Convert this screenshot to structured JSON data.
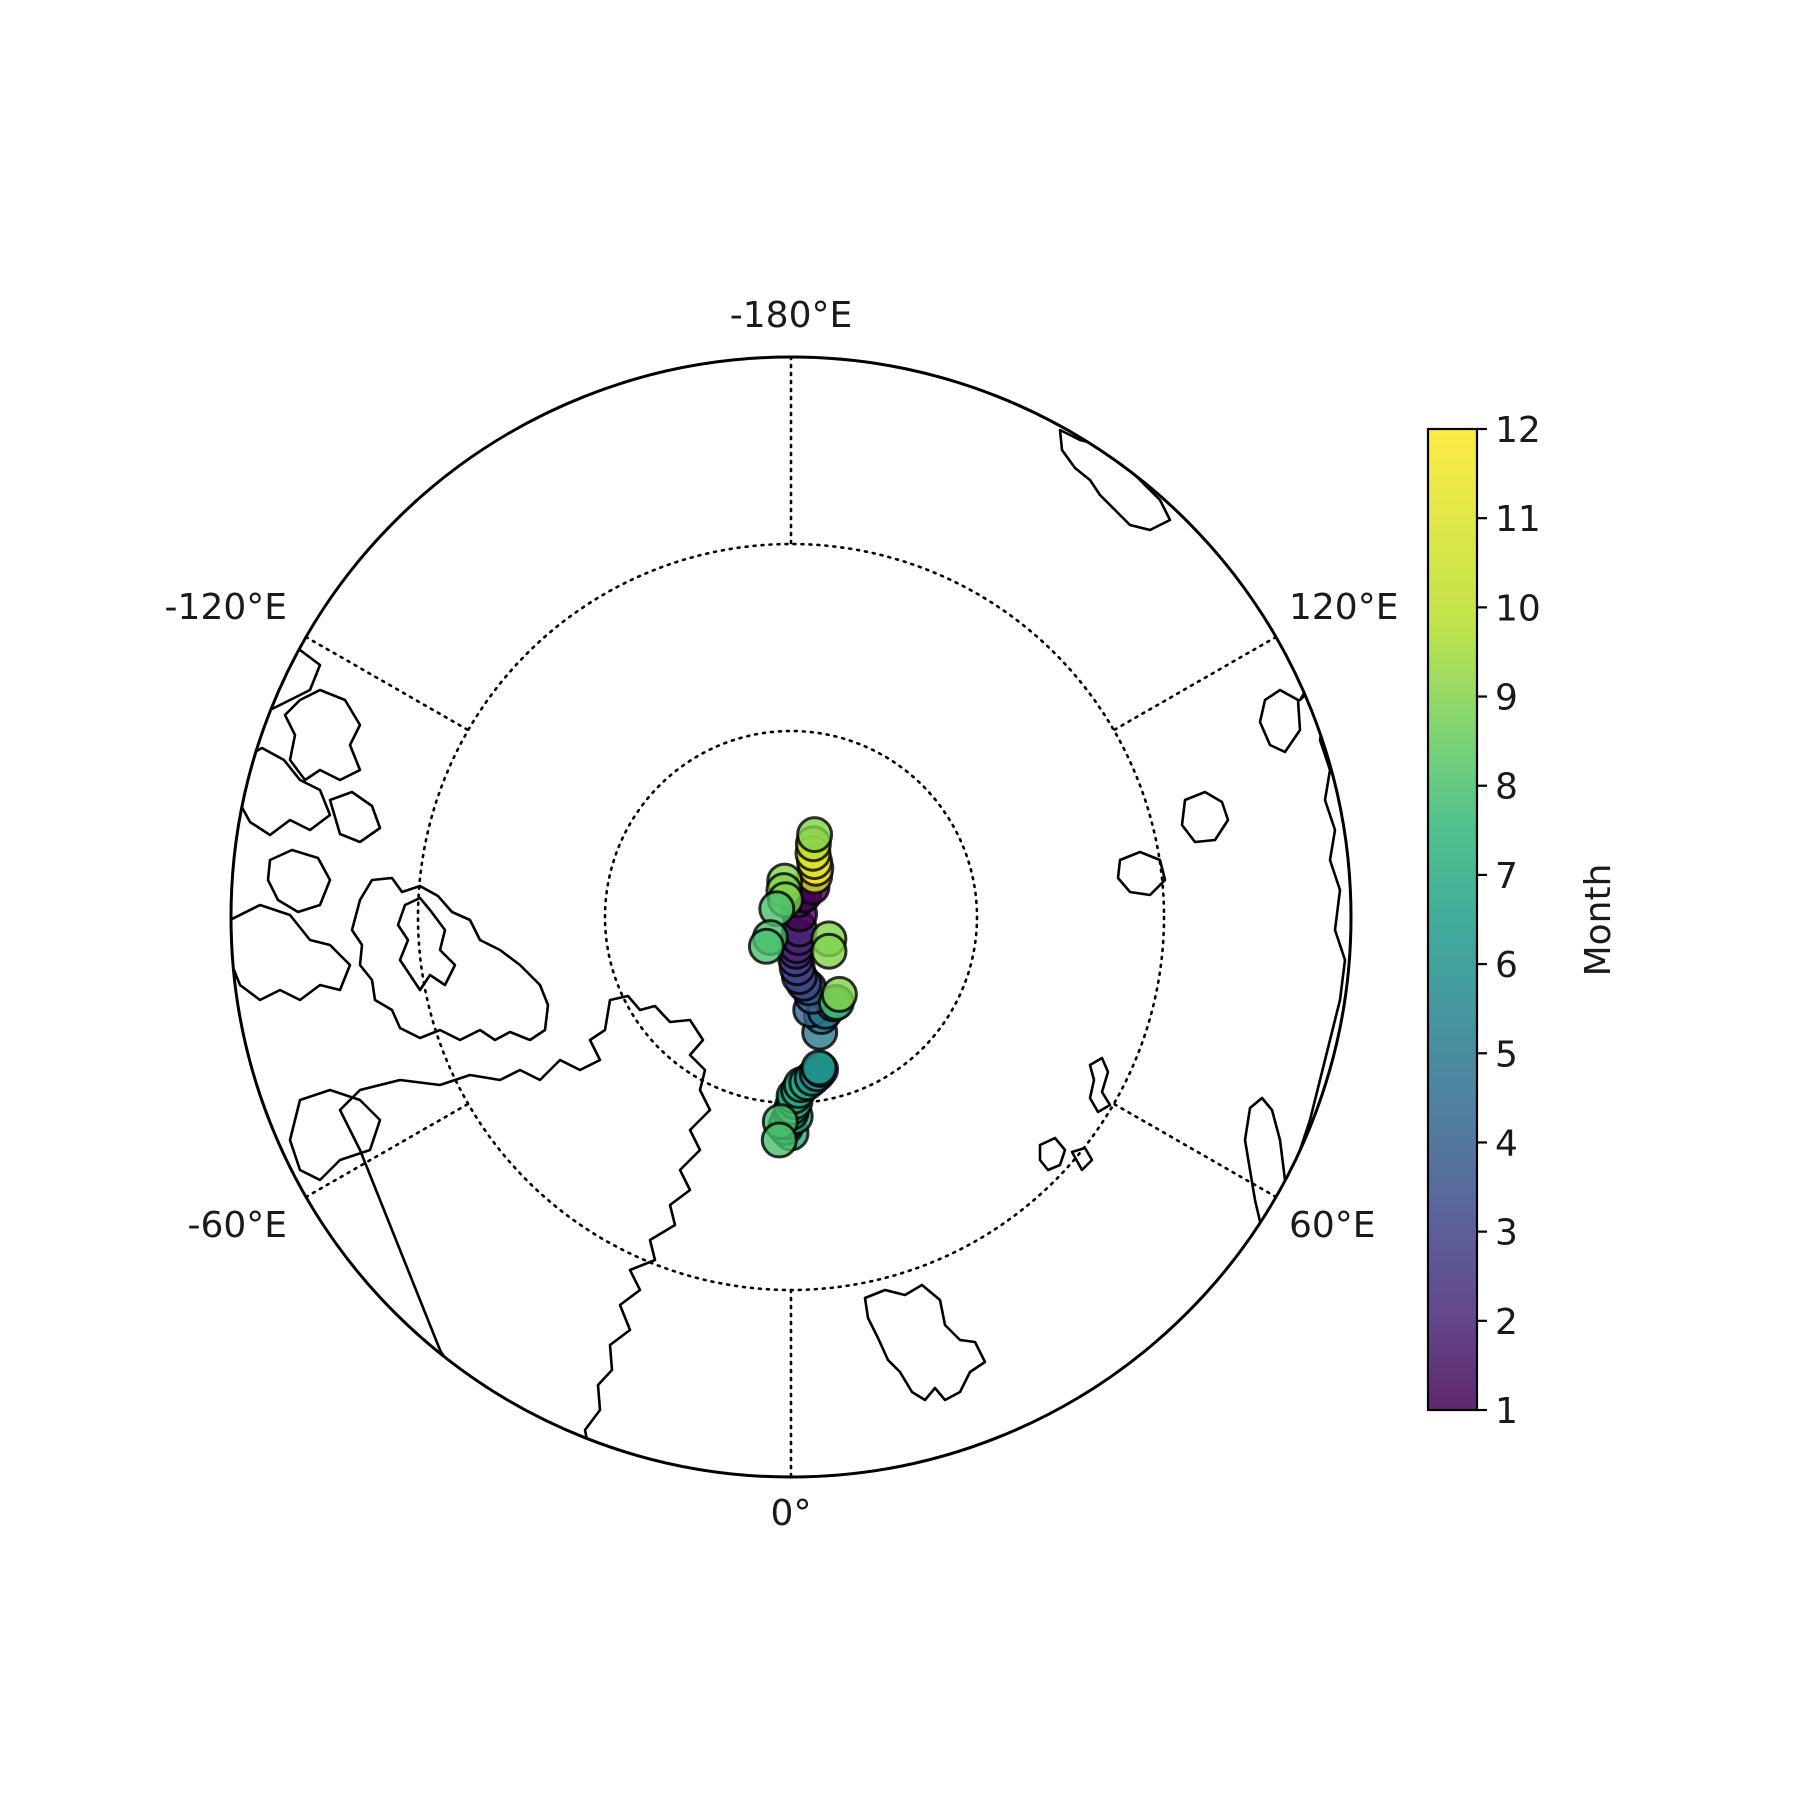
{
  "chart_data": {
    "type": "scatter",
    "projection": "north-polar-stereographic",
    "center": [
      0,
      90
    ],
    "extent_lat_min": 60,
    "latitude_circles": [
      70,
      80
    ],
    "meridian_labels": [
      {
        "lon": 180,
        "text": "-180°E"
      },
      {
        "lon": -120,
        "text": "-120°E"
      },
      {
        "lon": 120,
        "text": "120°E"
      },
      {
        "lon": -60,
        "text": "-60°E"
      },
      {
        "lon": 60,
        "text": "60°E"
      },
      {
        "lon": 0,
        "text": "0°"
      }
    ],
    "color_variable": "Month",
    "colormap": "viridis",
    "color_range": [
      1,
      12
    ],
    "colorbar": {
      "label": "Month",
      "ticks": [
        "1",
        "2",
        "3",
        "4",
        "5",
        "6",
        "7",
        "8",
        "9",
        "10",
        "11",
        "12"
      ],
      "placement": "right"
    },
    "marker_alpha": 0.8,
    "points": [
      {
        "lon": 0.0,
        "lat": 78.2,
        "month": 7
      },
      {
        "lon": -1.5,
        "lat": 78.5,
        "month": 7
      },
      {
        "lon": -1.0,
        "lat": 78.8,
        "month": 7
      },
      {
        "lon": 1.2,
        "lat": 79.1,
        "month": 7
      },
      {
        "lon": 0.0,
        "lat": 79.3,
        "month": 7
      },
      {
        "lon": 0.3,
        "lat": 79.6,
        "month": 7
      },
      {
        "lon": 1.2,
        "lat": 79.9,
        "month": 7
      },
      {
        "lon": 1.0,
        "lat": 80.2,
        "month": 7
      },
      {
        "lon": 2.5,
        "lat": 80.5,
        "month": 7
      },
      {
        "lon": 3.5,
        "lat": 80.8,
        "month": 7
      },
      {
        "lon": 5.5,
        "lat": 80.9,
        "month": 7
      },
      {
        "lon": 7.5,
        "lat": 81.1,
        "month": 6
      },
      {
        "lon": 9.5,
        "lat": 81.3,
        "month": 6
      },
      {
        "lon": 11.0,
        "lat": 81.5,
        "month": 6
      },
      {
        "lon": 10.5,
        "lat": 81.6,
        "month": 6
      },
      {
        "lon": -3.0,
        "lat": 78.8,
        "month": 8
      },
      {
        "lon": -3.0,
        "lat": 77.8,
        "month": 8
      },
      {
        "lon": 14.0,
        "lat": 83.5,
        "month": 5
      },
      {
        "lon": 17.0,
        "lat": 84.3,
        "month": 5
      },
      {
        "lon": 12.0,
        "lat": 84.8,
        "month": 4
      },
      {
        "lon": 20.0,
        "lat": 84.5,
        "month": 5
      },
      {
        "lon": 26.0,
        "lat": 84.7,
        "month": 5
      },
      {
        "lon": 15.0,
        "lat": 85.5,
        "month": 4
      },
      {
        "lon": 14.0,
        "lat": 86.0,
        "month": 4
      },
      {
        "lon": 11.0,
        "lat": 86.3,
        "month": 3
      },
      {
        "lon": 8.0,
        "lat": 86.7,
        "month": 3
      },
      {
        "lon": 7.0,
        "lat": 87.2,
        "month": 3
      },
      {
        "lon": 6.5,
        "lat": 87.7,
        "month": 3
      },
      {
        "lon": 8.5,
        "lat": 88.1,
        "month": 2
      },
      {
        "lon": 11.5,
        "lat": 88.4,
        "month": 2
      },
      {
        "lon": 20.0,
        "lat": 88.8,
        "month": 2
      },
      {
        "lon": 35.0,
        "lat": 89.2,
        "month": 2
      },
      {
        "lon": 110.0,
        "lat": 89.5,
        "month": 1
      },
      {
        "lon": 160.0,
        "lat": 89.0,
        "month": 2
      },
      {
        "lon": 150.0,
        "lat": 88.6,
        "month": 1
      },
      {
        "lon": 145.0,
        "lat": 88.0,
        "month": 1
      },
      {
        "lon": 150.0,
        "lat": 87.4,
        "month": 11
      },
      {
        "lon": 153.0,
        "lat": 87.0,
        "month": 12
      },
      {
        "lon": 157.0,
        "lat": 86.7,
        "month": 11
      },
      {
        "lon": 161.0,
        "lat": 86.3,
        "month": 11
      },
      {
        "lon": 163.0,
        "lat": 85.8,
        "month": 10
      },
      {
        "lon": 164.0,
        "lat": 85.3,
        "month": 9
      },
      {
        "lon": -170.0,
        "lat": 88.0,
        "month": 9
      },
      {
        "lon": -165.0,
        "lat": 88.5,
        "month": 9
      },
      {
        "lon": -162.0,
        "lat": 89.0,
        "month": 9
      },
      {
        "lon": -120.0,
        "lat": 89.1,
        "month": 8
      },
      {
        "lon": -45.0,
        "lat": 88.4,
        "month": 8
      },
      {
        "lon": -40.0,
        "lat": 87.9,
        "month": 8
      },
      {
        "lon": 60.0,
        "lat": 87.6,
        "month": 9
      },
      {
        "lon": 48.0,
        "lat": 87.2,
        "month": 9
      },
      {
        "lon": 28.0,
        "lat": 84.7,
        "month": 8
      },
      {
        "lon": 32.0,
        "lat": 85.0,
        "month": 9
      }
    ]
  }
}
